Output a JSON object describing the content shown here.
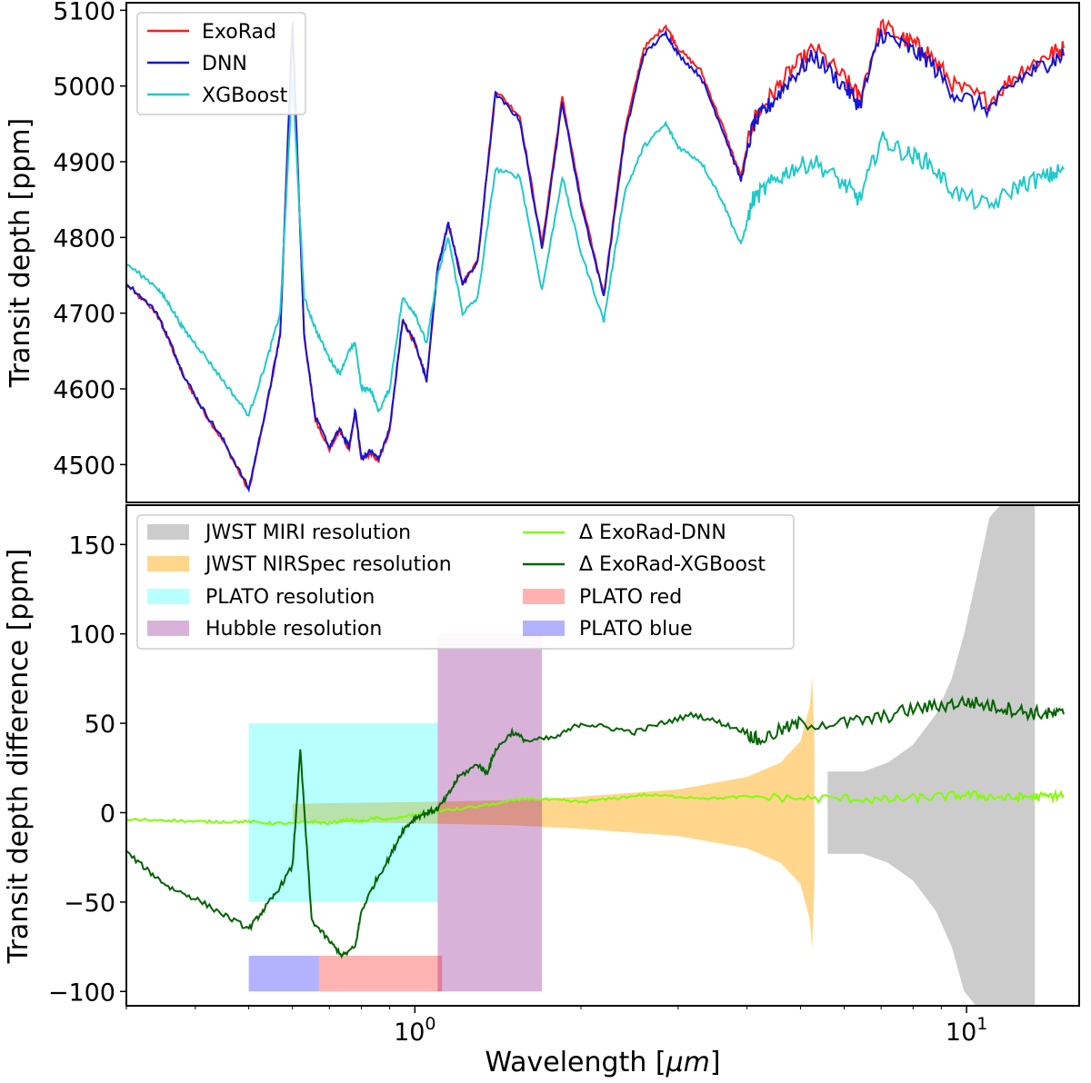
{
  "chart_data": [
    {
      "type": "line",
      "xscale": "log",
      "xlim": [
        0.3,
        16
      ],
      "ylim": [
        4450,
        5110
      ],
      "ylabel": "Transit depth [ppm]",
      "yticks": [
        4500,
        4600,
        4700,
        4800,
        4900,
        5000,
        5100
      ],
      "legend_position": "top-left",
      "series": [
        {
          "name": "ExoRad",
          "color": "#ff1a1a",
          "x": [
            0.3,
            0.34,
            0.36,
            0.38,
            0.41,
            0.45,
            0.5,
            0.54,
            0.57,
            0.6,
            0.63,
            0.66,
            0.7,
            0.73,
            0.76,
            0.78,
            0.8,
            0.83,
            0.86,
            0.9,
            0.95,
            1.0,
            1.05,
            1.1,
            1.15,
            1.22,
            1.3,
            1.4,
            1.55,
            1.7,
            1.85,
            2.0,
            2.2,
            2.4,
            2.6,
            2.85,
            3.0,
            3.3,
            3.6,
            3.9,
            4.1,
            4.4,
            4.8,
            5.3,
            6.0,
            6.4,
            7.0,
            7.8,
            8.5,
            9.5,
            11.0,
            12.5,
            14.0,
            15.0
          ],
          "values": [
            4738,
            4700,
            4660,
            4618,
            4575,
            4530,
            4465,
            4580,
            4670,
            5085,
            4670,
            4560,
            4520,
            4545,
            4520,
            4570,
            4505,
            4515,
            4505,
            4545,
            4690,
            4660,
            4610,
            4760,
            4820,
            4740,
            4770,
            4995,
            4960,
            4790,
            4985,
            4850,
            4725,
            4940,
            5050,
            5080,
            5050,
            5020,
            4950,
            4880,
            4955,
            4985,
            5020,
            5050,
            5010,
            4985,
            5080,
            5060,
            5045,
            5000,
            4980,
            5020,
            5040,
            5050
          ]
        },
        {
          "name": "DNN",
          "color": "#1414d4",
          "x": [
            0.3,
            0.34,
            0.36,
            0.38,
            0.41,
            0.45,
            0.5,
            0.54,
            0.57,
            0.6,
            0.63,
            0.66,
            0.7,
            0.73,
            0.76,
            0.78,
            0.8,
            0.83,
            0.86,
            0.9,
            0.95,
            1.0,
            1.05,
            1.1,
            1.15,
            1.22,
            1.3,
            1.4,
            1.55,
            1.7,
            1.85,
            2.0,
            2.2,
            2.4,
            2.6,
            2.85,
            3.0,
            3.3,
            3.6,
            3.9,
            4.1,
            4.4,
            4.8,
            5.3,
            6.0,
            6.4,
            7.0,
            7.8,
            8.5,
            9.5,
            11.0,
            12.5,
            14.0,
            15.0
          ],
          "values": [
            4740,
            4702,
            4662,
            4620,
            4577,
            4532,
            4468,
            4582,
            4672,
            5080,
            4672,
            4563,
            4523,
            4547,
            4523,
            4572,
            4508,
            4518,
            4508,
            4547,
            4690,
            4662,
            4612,
            4760,
            4818,
            4738,
            4768,
            4990,
            4955,
            4785,
            4978,
            4845,
            4722,
            4932,
            5042,
            5070,
            5042,
            5012,
            4945,
            4875,
            4948,
            4975,
            5010,
            5040,
            5000,
            4975,
            5070,
            5050,
            5035,
            4990,
            4970,
            5010,
            5030,
            5040
          ]
        },
        {
          "name": "XGBoost",
          "color": "#1fc9cc",
          "x": [
            0.3,
            0.34,
            0.36,
            0.38,
            0.41,
            0.45,
            0.5,
            0.54,
            0.57,
            0.6,
            0.63,
            0.66,
            0.7,
            0.73,
            0.76,
            0.78,
            0.8,
            0.83,
            0.86,
            0.9,
            0.95,
            1.0,
            1.05,
            1.1,
            1.15,
            1.22,
            1.3,
            1.4,
            1.55,
            1.7,
            1.85,
            2.0,
            2.2,
            2.4,
            2.6,
            2.85,
            3.0,
            3.3,
            3.6,
            3.9,
            4.1,
            4.4,
            4.8,
            5.3,
            6.0,
            6.4,
            7.0,
            7.8,
            8.5,
            9.5,
            11.0,
            12.5,
            14.0,
            15.0
          ],
          "values": [
            4765,
            4735,
            4710,
            4680,
            4650,
            4610,
            4565,
            4640,
            4700,
            5010,
            4720,
            4680,
            4640,
            4620,
            4650,
            4660,
            4600,
            4600,
            4570,
            4600,
            4720,
            4700,
            4660,
            4750,
            4800,
            4700,
            4720,
            4890,
            4880,
            4730,
            4880,
            4780,
            4690,
            4860,
            4920,
            4950,
            4920,
            4900,
            4850,
            4790,
            4850,
            4870,
            4890,
            4900,
            4870,
            4850,
            4930,
            4910,
            4900,
            4860,
            4840,
            4870,
            4880,
            4890
          ]
        }
      ]
    },
    {
      "type": "line",
      "xscale": "log",
      "xlim": [
        0.3,
        16
      ],
      "ylim": [
        -108,
        172
      ],
      "xlabel": "Wavelength [",
      "xlabel_symbol": "μm",
      "xlabel_end": "]",
      "ylabel": "Transit depth difference [ppm]",
      "yticks": [
        -100,
        -50,
        0,
        50,
        100,
        150
      ],
      "xticks": [
        {
          "value": 1.0,
          "base": "10",
          "exponent": "0"
        },
        {
          "value": 10.0,
          "base": "10",
          "exponent": "1"
        }
      ],
      "legend_position": "top-left",
      "bands": [
        {
          "name": "PLATO resolution",
          "color": "#00ffff",
          "alpha": 0.28,
          "x": [
            0.5,
            1.1
          ],
          "y": [
            -50,
            50
          ]
        },
        {
          "name": "Hubble resolution",
          "color": "#800080",
          "alpha": 0.3,
          "x": [
            1.1,
            1.7
          ],
          "y": [
            -100,
            100
          ]
        },
        {
          "name": "PLATO red",
          "color": "#ff0000",
          "alpha": 0.3,
          "x": [
            0.67,
            1.12
          ],
          "y": [
            -100,
            -80
          ]
        },
        {
          "name": "PLATO blue",
          "color": "#0000ff",
          "alpha": 0.3,
          "x": [
            0.5,
            0.67
          ],
          "y": [
            -100,
            -80
          ]
        }
      ],
      "envelopes": [
        {
          "name": "JWST NIRSpec resolution",
          "color": "#ffa500",
          "alpha": 0.45,
          "x": [
            0.6,
            1.0,
            1.5,
            2.0,
            3.0,
            4.0,
            4.6,
            5.0,
            5.2,
            5.25,
            5.3
          ],
          "upper": [
            5,
            6,
            7,
            9,
            13,
            20,
            28,
            40,
            60,
            76,
            40
          ],
          "lower": [
            -5,
            -6,
            -7,
            -9,
            -13,
            -20,
            -28,
            -40,
            -60,
            -76,
            -40
          ]
        },
        {
          "name": "JWST MIRI resolution",
          "color": "#999999",
          "alpha": 0.5,
          "x": [
            5.6,
            6.5,
            7.2,
            8.0,
            8.8,
            9.4,
            9.9,
            10.4,
            11.0,
            11.5,
            12.0,
            13.3
          ],
          "upper": [
            23,
            23,
            28,
            38,
            55,
            75,
            100,
            130,
            165,
            172,
            172,
            172
          ],
          "lower": [
            -23,
            -23,
            -28,
            -38,
            -55,
            -75,
            -100,
            -108,
            -108,
            -108,
            -108,
            -108
          ]
        }
      ],
      "series": [
        {
          "name": "Δ ExoRad-DNN",
          "color": "#7fff00",
          "x": [
            0.3,
            0.35,
            0.4,
            0.45,
            0.5,
            0.55,
            0.6,
            0.65,
            0.7,
            0.75,
            0.8,
            0.85,
            0.9,
            1.0,
            1.1,
            1.2,
            1.4,
            1.6,
            1.8,
            2.0,
            2.3,
            2.6,
            3.0,
            3.5,
            4.0,
            5.0,
            6.0,
            7.0,
            8.0,
            9.0,
            10.0,
            11.0,
            12.0,
            13.0,
            14.0,
            15.0
          ],
          "values": [
            -4,
            -4,
            -5,
            -5,
            -5,
            -6,
            -6,
            -5,
            -6,
            -4,
            -5,
            -3,
            -4,
            -1,
            1,
            2,
            5,
            8,
            7,
            6,
            8,
            10,
            9,
            8,
            9,
            8,
            8,
            7,
            8,
            9,
            10,
            9,
            8,
            9,
            9,
            10
          ]
        },
        {
          "name": "Δ ExoRad-XGBoost",
          "color": "#006400",
          "x": [
            0.3,
            0.33,
            0.36,
            0.4,
            0.45,
            0.5,
            0.53,
            0.56,
            0.6,
            0.62,
            0.65,
            0.7,
            0.74,
            0.78,
            0.8,
            0.85,
            0.9,
            0.95,
            1.0,
            1.05,
            1.1,
            1.15,
            1.2,
            1.3,
            1.35,
            1.4,
            1.5,
            1.6,
            1.8,
            2.0,
            2.2,
            2.5,
            2.8,
            3.2,
            3.6,
            4.0,
            4.2,
            4.6,
            5.0,
            6.0,
            7.0,
            8.0,
            9.0,
            10.0,
            11.0,
            12.0,
            13.0,
            14.0,
            15.0
          ],
          "values": [
            -22,
            -33,
            -42,
            -48,
            -57,
            -65,
            -55,
            -45,
            -30,
            35,
            -60,
            -72,
            -80,
            -75,
            -55,
            -38,
            -25,
            -10,
            -3,
            0,
            2,
            10,
            20,
            27,
            22,
            35,
            45,
            40,
            42,
            50,
            48,
            45,
            50,
            55,
            50,
            45,
            40,
            46,
            50,
            50,
            53,
            58,
            60,
            62,
            60,
            58,
            56,
            55,
            55
          ]
        }
      ]
    }
  ]
}
